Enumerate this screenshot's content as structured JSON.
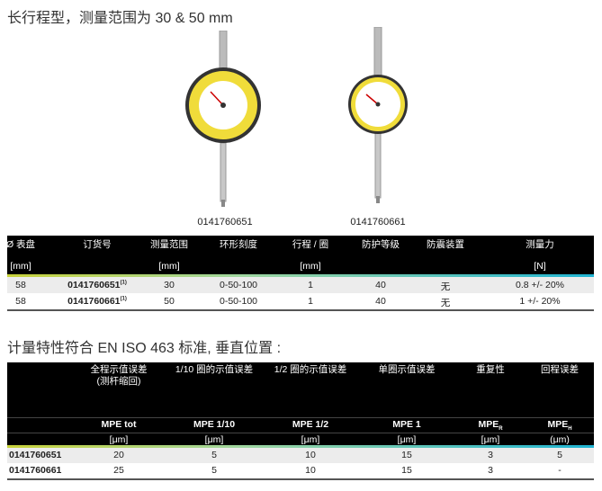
{
  "heading1": "长行程型，测量范围为 30 & 50 mm",
  "products": [
    {
      "code": "0141760651",
      "dial_color": "#f0dc3a"
    },
    {
      "code": "0141760661",
      "dial_color": "#f0dc3a"
    }
  ],
  "table1": {
    "headers": [
      "Ø 表盘",
      "订货号",
      "测量范围",
      "环形刻度",
      "行程 / 圈",
      "防护等级",
      "防震装置",
      "测量力"
    ],
    "units": [
      "[mm]",
      "",
      "[mm]",
      "",
      "[mm]",
      "",
      "",
      "[N]"
    ],
    "footnote_mark": "(1)",
    "rows": [
      [
        "58",
        "0141760651",
        "30",
        "0-50-100",
        "1",
        "40",
        "无",
        "0.8 +/- 20%"
      ],
      [
        "58",
        "0141760661",
        "50",
        "0-50-100",
        "1",
        "40",
        "无",
        "1 +/- 20%"
      ]
    ]
  },
  "heading2": "计量特性符合 EN ISO 463 标准, 垂直位置 :",
  "table2": {
    "headers": [
      "",
      "全程示值误差",
      "1/10 圈的示值误差",
      "1/2 圈的示值误差",
      "单圈示值误差",
      "重复性",
      "回程误差"
    ],
    "header_sub": "(测杆缩回)",
    "symbols": [
      "",
      "MPE tot",
      "MPE 1/10",
      "MPE 1/2",
      "MPE 1",
      "MPE",
      "MPE"
    ],
    "symbol_subs": {
      "5": "R",
      "6": "H"
    },
    "units": [
      "",
      "[μm]",
      "[μm]",
      "[μm]",
      "[μm]",
      "[μm]",
      "(μm)"
    ],
    "rows": [
      [
        "0141760651",
        "20",
        "5",
        "10",
        "15",
        "3",
        "5"
      ],
      [
        "0141760661",
        "25",
        "5",
        "10",
        "15",
        "3",
        "-"
      ]
    ]
  },
  "colors": {
    "header_bg": "#000000",
    "gradient_start": "#c8d23a",
    "gradient_end": "#1fb4d2"
  }
}
